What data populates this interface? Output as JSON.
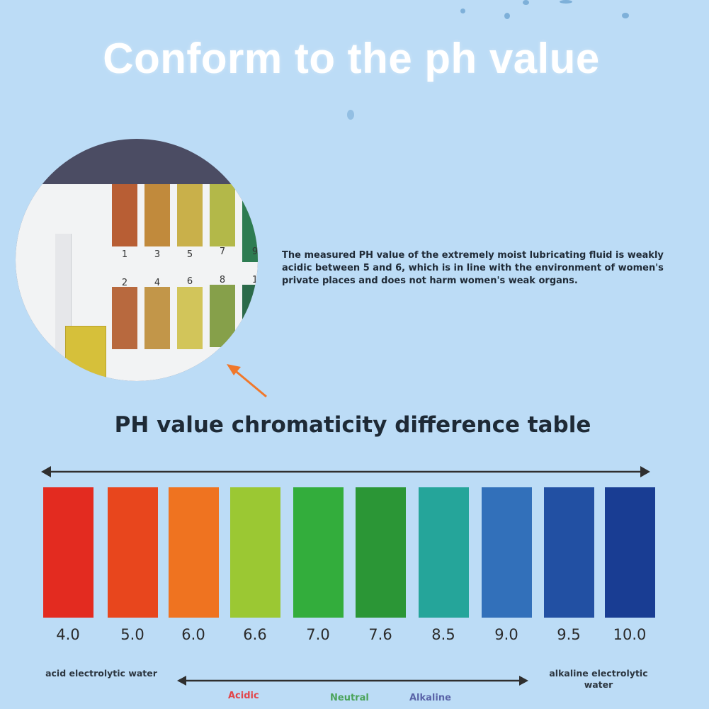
{
  "headline": "Conform to the ph value",
  "strip_numbers_top": [
    "1",
    "3",
    "5",
    "7",
    "9"
  ],
  "strip_numbers_bottom": [
    "2",
    "4",
    "6",
    "8",
    "1"
  ],
  "description": "The measured PH value of the extremely moist lubricating fluid is weakly acidic between 5 and 6, which is in line with the environment of women's private places and does not harm women's weak organs.",
  "table_title": "PH value chromaticity difference table",
  "ph_scale": [
    {
      "label": "4.0",
      "color": "#e32b20"
    },
    {
      "label": "5.0",
      "color": "#e8461d"
    },
    {
      "label": "6.0",
      "color": "#ef7320"
    },
    {
      "label": "6.6",
      "color": "#9bc833"
    },
    {
      "label": "7.0",
      "color": "#33ad3c"
    },
    {
      "label": "7.6",
      "color": "#2b9636"
    },
    {
      "label": "8.5",
      "color": "#25a59a"
    },
    {
      "label": "9.0",
      "color": "#3270ba"
    },
    {
      "label": "9.5",
      "color": "#2250a3"
    },
    {
      "label": "10.0",
      "color": "#193d93"
    }
  ],
  "acid_label": "acid electrolytic water",
  "alkaline_label": "alkaline electrolytic water",
  "categories": {
    "acidic": "Acidic",
    "neutral": "Neutral",
    "alkaline": "Alkaline"
  },
  "category_colors": {
    "acidic": "#e2454a",
    "neutral": "#4aa35a",
    "alkaline": "#5a64a8"
  }
}
